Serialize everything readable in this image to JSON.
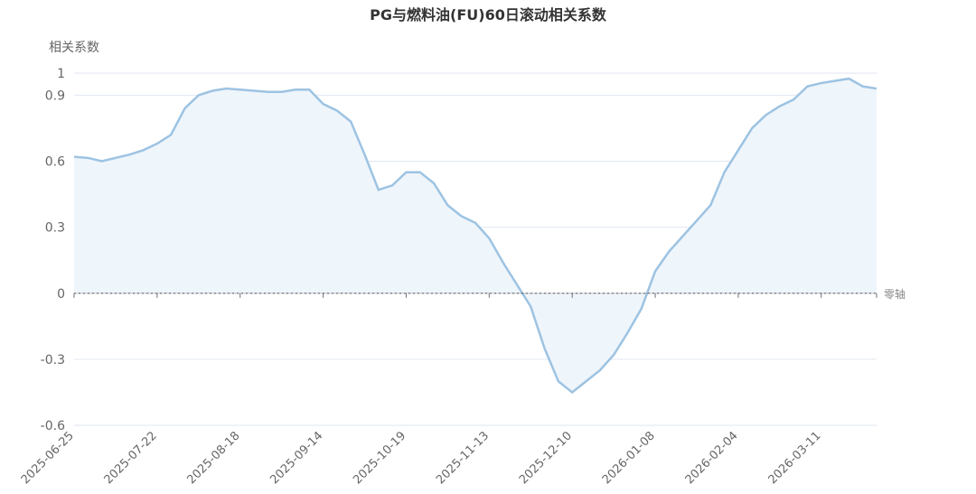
{
  "chart_data": {
    "type": "line",
    "title": "PG与燃料油(FU)60日滚动相关系数",
    "y_label": "相关系数",
    "zero_line_label": "零轴",
    "categories": [
      "2025-06-25",
      null,
      null,
      null,
      null,
      null,
      "2025-07-22",
      null,
      null,
      null,
      null,
      null,
      "2025-08-18",
      null,
      null,
      null,
      null,
      null,
      "2025-09-14",
      null,
      null,
      null,
      null,
      null,
      "2025-10-19",
      null,
      null,
      null,
      null,
      null,
      "2025-11-13",
      null,
      null,
      null,
      null,
      null,
      "2025-12-10",
      null,
      null,
      null,
      null,
      null,
      "2026-01-08",
      null,
      null,
      null,
      null,
      null,
      "2026-02-04",
      null,
      null,
      null,
      null,
      null,
      "2026-03-11",
      null,
      null,
      null,
      null
    ],
    "series": [
      {
        "name": "相关系数",
        "color": "#9dc3e2",
        "area_color": "#eef5fb",
        "values": [
          0.62,
          0.615,
          0.6,
          0.615,
          0.63,
          0.65,
          0.68,
          0.72,
          0.84,
          0.9,
          0.92,
          0.93,
          0.925,
          0.92,
          0.915,
          0.915,
          0.925,
          0.925,
          0.86,
          0.83,
          0.78,
          0.63,
          0.47,
          0.49,
          0.55,
          0.55,
          0.5,
          0.4,
          0.35,
          0.32,
          0.25,
          0.14,
          0.04,
          -0.06,
          -0.25,
          -0.4,
          -0.45,
          -0.4,
          -0.35,
          -0.28,
          -0.18,
          -0.07,
          0.1,
          0.19,
          0.26,
          0.33,
          0.4,
          0.55,
          0.65,
          0.75,
          0.81,
          0.85,
          0.88,
          0.94,
          0.955,
          0.965,
          0.975,
          0.94,
          0.93
        ]
      }
    ],
    "ylim": [
      -0.6,
      1
    ],
    "yticks": [
      -0.6,
      -0.3,
      0,
      0.3,
      0.6,
      0.9,
      1
    ],
    "grid": true
  }
}
